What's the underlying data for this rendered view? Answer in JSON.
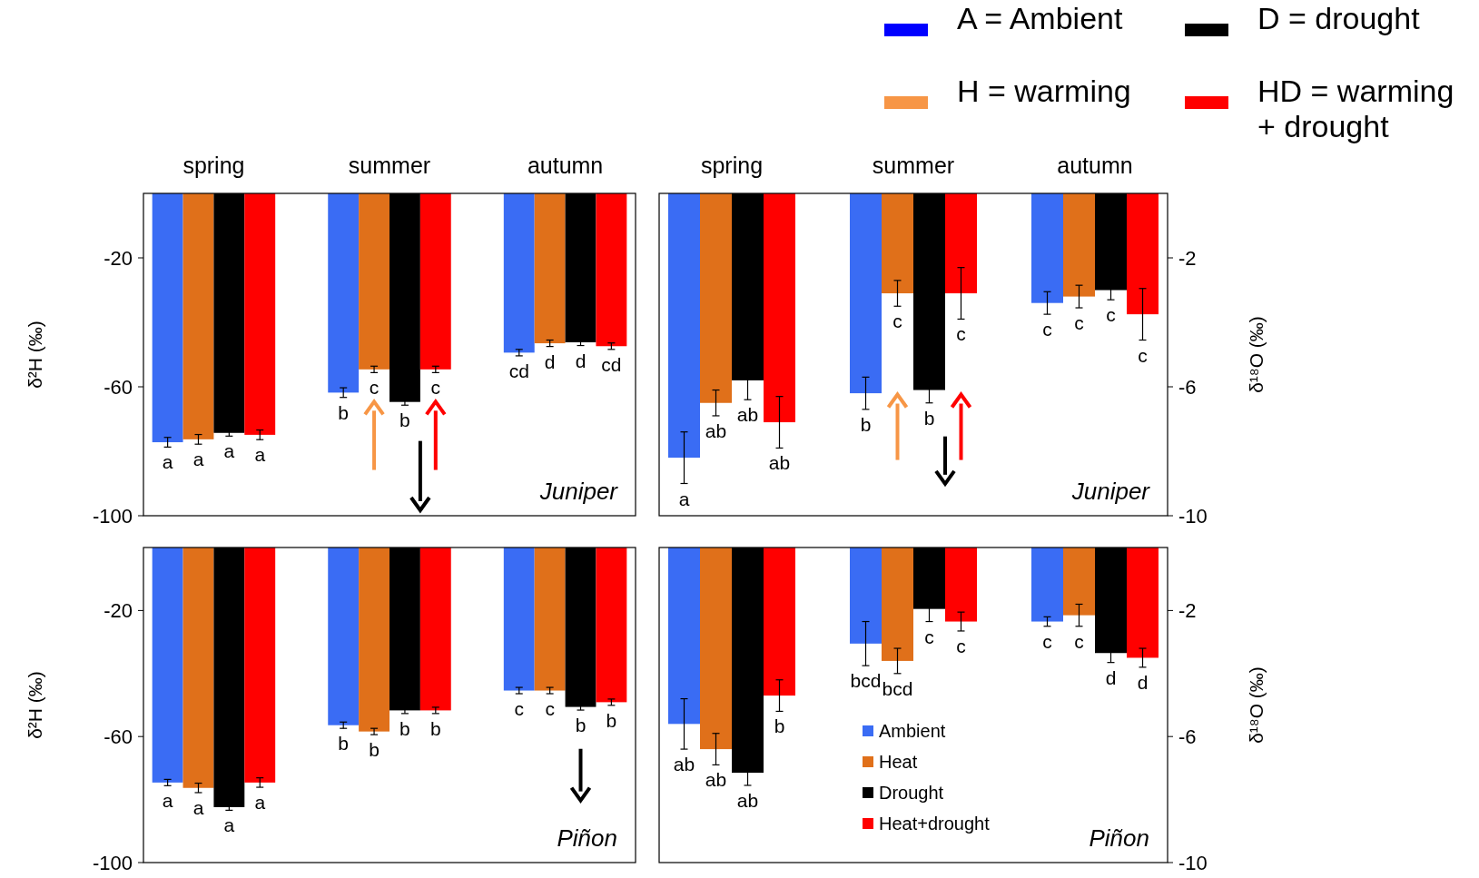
{
  "chart_data": [
    {
      "type": "bar",
      "categories": [
        "spring",
        "summer",
        "autumn"
      ],
      "ylim": [
        -100,
        0
      ],
      "yticks": [
        -20,
        -60,
        -100
      ],
      "ylabel": "δ²H (‰)",
      "annotations": [
        "Juniper"
      ],
      "series": [
        {
          "color": "#3a6cf4",
          "values": [
            -77.2,
            -61.8,
            -49.4
          ],
          "errors": [
            1.5,
            1.5,
            1
          ],
          "value_labels": [
            "a",
            "b",
            "cd"
          ]
        },
        {
          "color": "#e0701a",
          "values": [
            -76.3,
            -54.6,
            -46.5
          ],
          "errors": [
            1.5,
            1,
            1
          ],
          "value_labels": [
            "a",
            "c",
            "d"
          ]
        },
        {
          "color": "#000000",
          "values": [
            -74.3,
            -64.7,
            -46.2
          ],
          "errors": [
            1,
            1,
            1
          ],
          "value_labels": [
            "a",
            "b",
            "d"
          ]
        },
        {
          "color": "#ff0000",
          "values": [
            -74.9,
            -54.6,
            -47.4
          ],
          "errors": [
            1.5,
            1,
            1
          ],
          "value_labels": [
            "a",
            "c",
            "cd"
          ]
        }
      ]
    },
    {
      "type": "bar",
      "categories": [
        "spring",
        "summer",
        "autumn"
      ],
      "ylim": [
        -10,
        0
      ],
      "yticks": [
        -2,
        -6,
        -10
      ],
      "ylabel": "δ¹⁸O (‰)",
      "annotations": [
        "Juniper"
      ],
      "series": [
        {
          "color": "#3a6cf4",
          "values": [
            -8.2,
            -6.2,
            -3.4
          ],
          "errors": [
            0.8,
            0.5,
            0.35
          ],
          "value_labels": [
            "a",
            "b",
            "c"
          ]
        },
        {
          "color": "#e0701a",
          "values": [
            -6.5,
            -3.1,
            -3.2
          ],
          "errors": [
            0.4,
            0.4,
            0.35
          ],
          "value_labels": [
            "ab",
            "c",
            "c"
          ]
        },
        {
          "color": "#000000",
          "values": [
            -5.8,
            -6.1,
            -3.0
          ],
          "errors": [
            0.6,
            0.4,
            0.3
          ],
          "value_labels": [
            "ab",
            "b",
            "c"
          ]
        },
        {
          "color": "#ff0000",
          "values": [
            -7.1,
            -3.1,
            -3.75
          ],
          "errors": [
            0.8,
            0.8,
            0.8
          ],
          "value_labels": [
            "ab",
            "c",
            "c"
          ]
        }
      ]
    },
    {
      "type": "bar",
      "categories": [
        null,
        null,
        null
      ],
      "ylim": [
        -100,
        0
      ],
      "yticks": [
        -20,
        -60,
        -100
      ],
      "ylabel": "δ²H (‰)",
      "annotations": [
        "Piñon"
      ],
      "series": [
        {
          "color": "#3a6cf4",
          "values": [
            -74.6,
            -56.4,
            -45.4
          ],
          "errors": [
            1,
            1,
            1
          ],
          "value_labels": [
            "a",
            "b",
            "c"
          ]
        },
        {
          "color": "#e0701a",
          "values": [
            -76.3,
            -58.4,
            -45.4
          ],
          "errors": [
            1.5,
            1,
            1
          ],
          "value_labels": [
            "a",
            "b",
            "c"
          ]
        },
        {
          "color": "#000000",
          "values": [
            -82.4,
            -51.7,
            -50.6
          ],
          "errors": [
            1,
            1,
            1
          ],
          "value_labels": [
            "a",
            "b",
            "b"
          ]
        },
        {
          "color": "#ff0000",
          "values": [
            -74.6,
            -51.7,
            -49.1
          ],
          "errors": [
            1.5,
            1,
            1
          ],
          "value_labels": [
            "a",
            "b",
            "b"
          ]
        }
      ]
    },
    {
      "type": "bar",
      "categories": [
        null,
        null,
        null
      ],
      "ylim": [
        -10,
        0
      ],
      "yticks": [
        -2,
        -6,
        -10
      ],
      "ylabel": "δ¹⁸O (‰)",
      "annotations": [
        "Piñon"
      ],
      "legend": "bottom",
      "series": [
        {
          "name": "Ambient",
          "color": "#3a6cf4",
          "values": [
            -5.6,
            -3.05,
            -2.35
          ],
          "errors": [
            0.8,
            0.7,
            0.15
          ],
          "value_labels": [
            "ab",
            "bcd",
            "c"
          ]
        },
        {
          "name": "Heat",
          "color": "#e0701a",
          "values": [
            -6.4,
            -3.6,
            -2.15
          ],
          "errors": [
            0.5,
            0.4,
            0.35
          ],
          "value_labels": [
            "ab",
            "bcd",
            "c"
          ]
        },
        {
          "name": "Drought",
          "color": "#000000",
          "values": [
            -7.15,
            -1.95,
            -3.35
          ],
          "errors": [
            0.4,
            0.4,
            0.3
          ],
          "value_labels": [
            "ab",
            "c",
            "d"
          ]
        },
        {
          "name": "Heat+drought",
          "color": "#ff0000",
          "values": [
            -4.7,
            -2.35,
            -3.5
          ],
          "errors": [
            0.5,
            0.3,
            0.3
          ],
          "value_labels": [
            "b",
            "c",
            "d"
          ]
        }
      ]
    },
    {
      "type": "other",
      "annotations": [
        "A = Ambient",
        "D = drought",
        "H = warming",
        "HD = warming\n+ drought"
      ],
      "colors": [
        "#0000ff",
        "#000000",
        "#f79646",
        "#ff0000"
      ]
    }
  ]
}
